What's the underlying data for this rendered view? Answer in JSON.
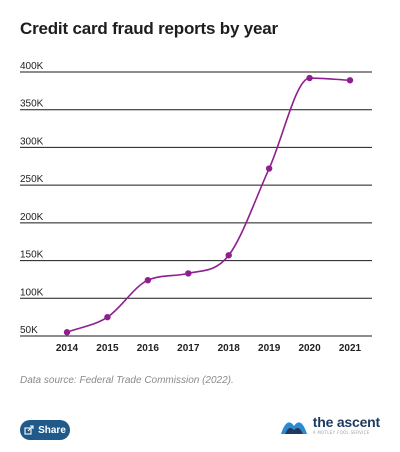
{
  "chart_data": {
    "type": "line",
    "title": "Credit card fraud reports by year",
    "xlabel": "",
    "ylabel": "",
    "categories": [
      "2014",
      "2015",
      "2016",
      "2017",
      "2018",
      "2019",
      "2020",
      "2021"
    ],
    "values": [
      55000,
      75000,
      124000,
      133000,
      157000,
      272000,
      392000,
      389000
    ],
    "ylim": [
      50000,
      400000
    ],
    "yticks": [
      {
        "value": 400000,
        "label": "400K"
      },
      {
        "value": 350000,
        "label": "350K"
      },
      {
        "value": 300000,
        "label": "300K"
      },
      {
        "value": 250000,
        "label": "250K"
      },
      {
        "value": 200000,
        "label": "200K"
      },
      {
        "value": 150000,
        "label": "150K"
      },
      {
        "value": 100000,
        "label": "100K"
      },
      {
        "value": 50000,
        "label": "50K"
      }
    ],
    "grid": "horizontal",
    "line_color": "#8e1f8f",
    "point_color": "#8e1f8f",
    "grid_color": "#1a1a1a"
  },
  "footer": {
    "source": "Data source: Federal Trade Commission (2022).",
    "share_label": "Share",
    "brand_name": "the ascent",
    "brand_sub": "A MOTLEY FOOL SERVICE"
  },
  "colors": {
    "share_bg": "#1f5a8b",
    "brand_navy": "#1e3a5f",
    "brand_blue": "#2a8ad4"
  }
}
